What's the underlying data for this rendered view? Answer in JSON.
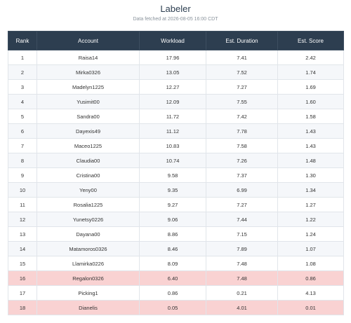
{
  "header": {
    "title": "Labeler",
    "subtitle": "Data fetched at 2026-08-05 16:00 CDT"
  },
  "table": {
    "columns": [
      "Rank",
      "Account",
      "Workload",
      "Est. Duration",
      "Est. Score"
    ],
    "rows": [
      [
        "1",
        "Raisa14",
        "17.96",
        "7.41",
        "2.42"
      ],
      [
        "2",
        "Mirka0326",
        "13.05",
        "7.52",
        "1.74"
      ],
      [
        "3",
        "Madelyn1225",
        "12.27",
        "7.27",
        "1.69"
      ],
      [
        "4",
        "Yusimit00",
        "12.09",
        "7.55",
        "1.60"
      ],
      [
        "5",
        "Sandra00",
        "11.72",
        "7.42",
        "1.58"
      ],
      [
        "6",
        "Dayexis49",
        "11.12",
        "7.78",
        "1.43"
      ],
      [
        "7",
        "Maceo1225",
        "10.83",
        "7.58",
        "1.43"
      ],
      [
        "8",
        "Claudia00",
        "10.74",
        "7.26",
        "1.48"
      ],
      [
        "9",
        "Cristina00",
        "9.58",
        "7.37",
        "1.30"
      ],
      [
        "10",
        "Yeny00",
        "9.35",
        "6.99",
        "1.34"
      ],
      [
        "11",
        "Rosalia1225",
        "9.27",
        "7.27",
        "1.27"
      ],
      [
        "12",
        "Yunetsy0226",
        "9.06",
        "7.44",
        "1.22"
      ],
      [
        "13",
        "Dayana00",
        "8.86",
        "7.15",
        "1.24"
      ],
      [
        "14",
        "Matamoros0326",
        "8.46",
        "7.89",
        "1.07"
      ],
      [
        "15",
        "Llamirka0226",
        "8.09",
        "7.48",
        "1.08"
      ],
      [
        "16",
        "Regalon0326",
        "6.40",
        "7.48",
        "0.86"
      ],
      [
        "17",
        "Picking1",
        "0.86",
        "0.21",
        "4.13"
      ],
      [
        "18",
        "Dianelis",
        "0.05",
        "4.01",
        "0.01"
      ]
    ],
    "highlighted_rows": [
      15,
      17
    ],
    "highlight_color": "#f9d2d2"
  }
}
